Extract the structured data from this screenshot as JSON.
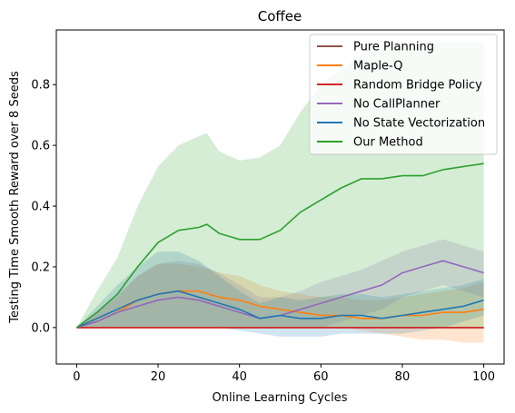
{
  "chart_data": {
    "type": "line",
    "title": "Coffee",
    "xlabel": "Online Learning Cycles",
    "ylabel": "Testing Time Smooth Reward over 8 Seeds",
    "xlim": [
      -5,
      105
    ],
    "ylim": [
      -0.12,
      0.98
    ],
    "xticks": [
      0,
      20,
      40,
      60,
      80,
      100
    ],
    "yticks": [
      0.0,
      0.2,
      0.4,
      0.6,
      0.8
    ],
    "xtick_labels": [
      "0",
      "20",
      "40",
      "60",
      "80",
      "100"
    ],
    "ytick_labels": [
      "0.0",
      "0.2",
      "0.4",
      "0.6",
      "0.8"
    ],
    "grid": false,
    "legend_position": "top-right",
    "series": [
      {
        "name": "Pure Planning",
        "color": "#8c564b",
        "x": [
          0,
          100
        ],
        "y": [
          0.0,
          0.0
        ],
        "band_lower": [
          0.0,
          0.0
        ],
        "band_upper": [
          0.0,
          0.0
        ]
      },
      {
        "name": "Maple-Q",
        "color": "#ff7f0e",
        "x": [
          0,
          5,
          10,
          15,
          20,
          25,
          30,
          35,
          40,
          45,
          50,
          55,
          60,
          65,
          70,
          75,
          80,
          85,
          90,
          95,
          100
        ],
        "y": [
          0.0,
          0.02,
          0.05,
          0.09,
          0.11,
          0.12,
          0.12,
          0.1,
          0.09,
          0.07,
          0.06,
          0.05,
          0.04,
          0.04,
          0.03,
          0.03,
          0.04,
          0.04,
          0.05,
          0.05,
          0.06
        ],
        "band_lower": [
          0.0,
          0.0,
          0.0,
          0.0,
          0.0,
          0.0,
          0.0,
          0.0,
          0.0,
          0.0,
          0.0,
          0.0,
          0.0,
          0.0,
          -0.01,
          -0.02,
          -0.03,
          -0.04,
          -0.04,
          -0.05,
          -0.05
        ],
        "band_upper": [
          0.0,
          0.05,
          0.1,
          0.17,
          0.21,
          0.21,
          0.2,
          0.18,
          0.17,
          0.14,
          0.12,
          0.11,
          0.1,
          0.1,
          0.09,
          0.09,
          0.1,
          0.11,
          0.12,
          0.13,
          0.15
        ]
      },
      {
        "name": "Random Bridge Policy",
        "color": "#d62728",
        "x": [
          0,
          100
        ],
        "y": [
          0.0,
          0.0
        ],
        "band_lower": [
          0.0,
          0.0
        ],
        "band_upper": [
          0.0,
          0.0
        ]
      },
      {
        "name": "No CallPlanner",
        "color": "#9467bd",
        "x": [
          0,
          5,
          10,
          15,
          20,
          25,
          30,
          35,
          40,
          45,
          50,
          55,
          60,
          65,
          70,
          75,
          80,
          85,
          90,
          95,
          100
        ],
        "y": [
          0.0,
          0.02,
          0.05,
          0.07,
          0.09,
          0.1,
          0.09,
          0.07,
          0.05,
          0.03,
          0.04,
          0.06,
          0.08,
          0.1,
          0.12,
          0.14,
          0.18,
          0.2,
          0.22,
          0.2,
          0.18
        ],
        "band_lower": [
          0.0,
          0.0,
          0.0,
          0.0,
          0.0,
          0.0,
          0.0,
          0.0,
          0.0,
          0.0,
          0.0,
          0.0,
          0.0,
          0.02,
          0.04,
          0.06,
          0.1,
          0.12,
          0.14,
          0.12,
          0.1
        ],
        "band_upper": [
          0.0,
          0.05,
          0.11,
          0.17,
          0.21,
          0.22,
          0.21,
          0.18,
          0.14,
          0.1,
          0.1,
          0.12,
          0.15,
          0.17,
          0.19,
          0.22,
          0.25,
          0.27,
          0.29,
          0.27,
          0.25
        ]
      },
      {
        "name": "No State Vectorization",
        "color": "#1f77b4",
        "x": [
          0,
          5,
          10,
          15,
          20,
          25,
          30,
          35,
          40,
          45,
          50,
          55,
          60,
          65,
          70,
          75,
          80,
          85,
          90,
          95,
          100
        ],
        "y": [
          0.0,
          0.03,
          0.06,
          0.09,
          0.11,
          0.12,
          0.1,
          0.08,
          0.06,
          0.03,
          0.04,
          0.03,
          0.03,
          0.04,
          0.04,
          0.03,
          0.04,
          0.05,
          0.06,
          0.07,
          0.09
        ],
        "band_lower": [
          0.0,
          0.0,
          0.0,
          0.0,
          0.0,
          0.0,
          0.0,
          0.0,
          -0.01,
          -0.02,
          -0.03,
          -0.03,
          -0.03,
          -0.02,
          -0.02,
          -0.02,
          -0.02,
          -0.01,
          0.0,
          0.02,
          0.04
        ],
        "band_upper": [
          0.0,
          0.07,
          0.14,
          0.2,
          0.25,
          0.25,
          0.22,
          0.17,
          0.12,
          0.08,
          0.1,
          0.09,
          0.1,
          0.11,
          0.11,
          0.1,
          0.11,
          0.12,
          0.13,
          0.14,
          0.16
        ]
      },
      {
        "name": "Our Method",
        "color": "#2ca02c",
        "x": [
          0,
          5,
          10,
          15,
          20,
          25,
          30,
          32,
          35,
          40,
          45,
          50,
          55,
          60,
          65,
          70,
          75,
          80,
          85,
          90,
          95,
          100
        ],
        "y": [
          0.0,
          0.05,
          0.11,
          0.2,
          0.28,
          0.32,
          0.33,
          0.34,
          0.31,
          0.29,
          0.29,
          0.32,
          0.38,
          0.42,
          0.46,
          0.49,
          0.49,
          0.5,
          0.5,
          0.52,
          0.53,
          0.54
        ],
        "band_lower": [
          0.0,
          0.0,
          0.0,
          0.0,
          0.0,
          0.0,
          0.0,
          0.0,
          0.0,
          0.0,
          0.0,
          0.0,
          0.0,
          0.0,
          0.0,
          0.0,
          0.0,
          0.0,
          0.0,
          0.0,
          0.0,
          0.0
        ],
        "band_upper": [
          0.0,
          0.12,
          0.23,
          0.4,
          0.53,
          0.6,
          0.63,
          0.64,
          0.58,
          0.55,
          0.56,
          0.6,
          0.71,
          0.8,
          0.85,
          0.9,
          0.92,
          0.93,
          0.94,
          0.94,
          0.94,
          0.94
        ]
      }
    ]
  }
}
